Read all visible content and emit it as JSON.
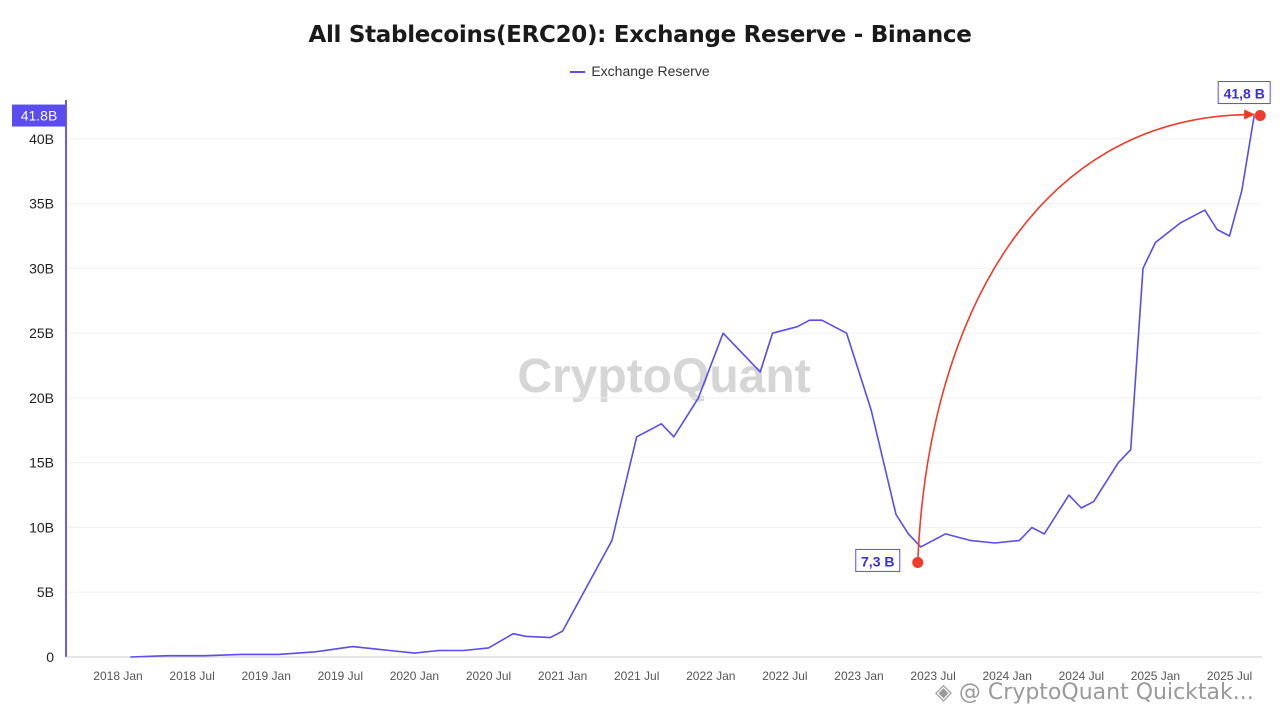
{
  "chart_data": {
    "type": "line",
    "title": "All Stablecoins(ERC20): Exchange Reserve - Binance",
    "legend": {
      "placement": "top-center",
      "entries": [
        "Exchange Reserve"
      ]
    },
    "series": [
      {
        "name": "Exchange Reserve",
        "color": "#5b4cf0",
        "x": [
          "2018-02",
          "2018-05",
          "2018-08",
          "2018-11",
          "2019-02",
          "2019-05",
          "2019-08",
          "2019-11",
          "2020-01",
          "2020-03",
          "2020-05",
          "2020-07",
          "2020-09",
          "2020-10",
          "2020-12",
          "2021-01",
          "2021-03",
          "2021-05",
          "2021-06",
          "2021-07",
          "2021-09",
          "2021-10",
          "2021-11",
          "2021-12",
          "2022-02",
          "2022-04",
          "2022-05",
          "2022-06",
          "2022-08",
          "2022-09",
          "2022-10",
          "2022-12",
          "2023-01",
          "2023-02",
          "2023-03",
          "2023-04",
          "2023-05",
          "2023-06",
          "2023-08",
          "2023-10",
          "2023-12",
          "2024-02",
          "2024-03",
          "2024-04",
          "2024-05",
          "2024-06",
          "2024-07",
          "2024-08",
          "2024-09",
          "2024-10",
          "2024-11",
          "2024-12",
          "2025-01",
          "2025-03",
          "2025-05",
          "2025-06",
          "2025-07",
          "2025-08",
          "2025-09"
        ],
        "values": [
          0.0,
          0.1,
          0.1,
          0.2,
          0.2,
          0.4,
          0.8,
          0.5,
          0.3,
          0.5,
          0.5,
          0.7,
          1.8,
          1.6,
          1.5,
          2.0,
          5.5,
          9.0,
          13.0,
          17.0,
          18.0,
          17.0,
          18.5,
          20.0,
          25.0,
          23.0,
          22.0,
          25.0,
          25.5,
          26.0,
          26.0,
          25.0,
          22.0,
          19.0,
          15.0,
          11.0,
          9.5,
          8.5,
          9.5,
          9.0,
          8.8,
          9.0,
          10.0,
          9.5,
          11.0,
          12.5,
          11.5,
          12.0,
          13.5,
          15.0,
          16.0,
          30.0,
          32.0,
          33.5,
          34.5,
          33.0,
          32.5,
          36.0,
          41.8
        ]
      }
    ],
    "x_tick_labels": [
      "2018 Jan",
      "2018 Jul",
      "2019 Jan",
      "2019 Jul",
      "2020 Jan",
      "2020 Jul",
      "2021 Jan",
      "2021 Jul",
      "2022 Jan",
      "2022 Jul",
      "2023 Jan",
      "2023 Jul",
      "2024 Jan",
      "2024 Jul",
      "2025 Jan",
      "2025 Jul"
    ],
    "y_tick_labels": [
      "0",
      "5B",
      "10B",
      "15B",
      "20B",
      "25B",
      "30B",
      "35B",
      "40B"
    ],
    "y_ticks": [
      0,
      5,
      10,
      15,
      20,
      25,
      30,
      35,
      40
    ],
    "ylim": [
      0,
      43
    ],
    "grid": "horizontal",
    "current_value_label": "41.8B",
    "annotations": {
      "low_label": "7,3 B",
      "low_value": 7.3,
      "high_label": "41,8 B",
      "high_value": 41.8
    },
    "watermark": "CryptoQuant"
  },
  "footer": {
    "text": "@ CryptoQuant Quicktak..."
  }
}
